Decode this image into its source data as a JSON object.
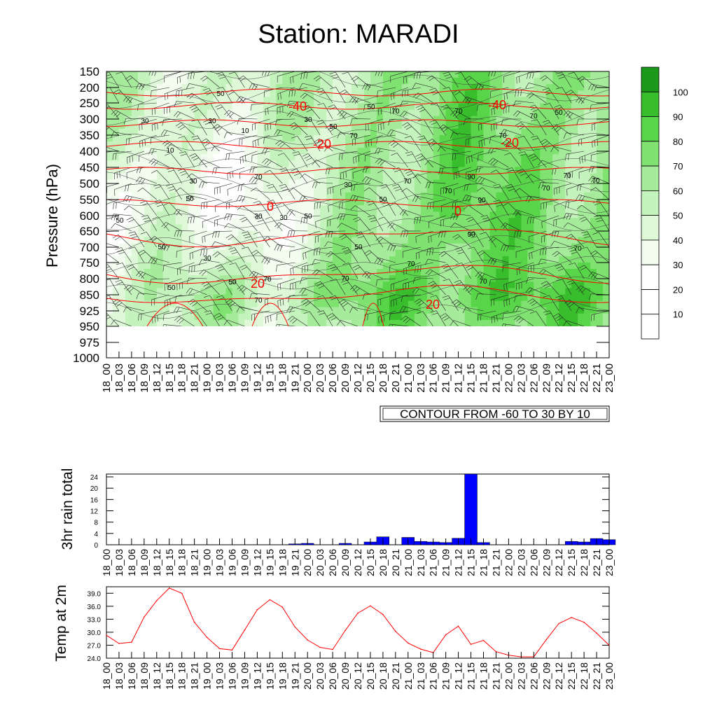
{
  "title": "Station: MARADI",
  "time_labels": [
    "18_00",
    "18_03",
    "18_06",
    "18_09",
    "18_12",
    "18_15",
    "18_18",
    "18_21",
    "19_00",
    "19_03",
    "19_06",
    "19_09",
    "19_12",
    "19_15",
    "19_18",
    "19_21",
    "20_00",
    "20_03",
    "20_06",
    "20_09",
    "20_12",
    "20_15",
    "20_18",
    "20_21",
    "21_00",
    "21_03",
    "21_06",
    "21_09",
    "21_12",
    "21_15",
    "21_18",
    "21_21",
    "22_00",
    "22_03",
    "22_06",
    "22_09",
    "22_12",
    "22_15",
    "22_18",
    "22_21",
    "23_00"
  ],
  "colors": {
    "rh_fill": [
      "#ffffff",
      "#ffffff",
      "#f2fdf0",
      "#def8d8",
      "#c5f3bd",
      "#a6eb9b",
      "#7fe271",
      "#58d548",
      "#38bd2c",
      "#1a991a"
    ],
    "temp_contour": "#ff0000",
    "rain_bar": "#0000ff",
    "temp_line": "#ff0000"
  },
  "chart_data": [
    {
      "type": "heatmap",
      "ylabel": "Pressure (hPa)",
      "y_ticks": [
        150,
        200,
        250,
        300,
        350,
        400,
        450,
        500,
        550,
        600,
        650,
        700,
        750,
        800,
        850,
        925,
        950,
        975,
        1000
      ],
      "x_categories_ref": "time_labels",
      "colorbar_levels": [
        10,
        20,
        30,
        40,
        50,
        60,
        70,
        80,
        90,
        100
      ],
      "temperature_contours": [
        -40,
        -20,
        0,
        20
      ],
      "info_label": "CONTOUR FROM -60 TO 30 BY 10",
      "rh_contour_labels": [
        10,
        30,
        50,
        70,
        90
      ],
      "grid": false
    },
    {
      "type": "bar",
      "ylabel": "3hr rain total",
      "ylim": [
        0,
        25
      ],
      "y_ticks": [
        0,
        4,
        8,
        12,
        16,
        20,
        24
      ],
      "values": [
        0,
        0,
        0,
        0,
        0,
        0,
        0,
        0,
        0,
        0,
        0,
        0,
        0,
        0,
        0,
        0.3,
        0.5,
        0,
        0,
        0.5,
        0,
        1.0,
        2.8,
        0,
        2.6,
        1.2,
        1.0,
        0.8,
        2.3,
        25,
        0.8,
        0,
        0,
        0,
        0,
        0,
        0,
        1.2,
        1.0,
        2.2,
        1.8
      ]
    },
    {
      "type": "line",
      "ylabel": "Temp at 2m",
      "ylim": [
        24,
        40.5
      ],
      "y_ticks": [
        "24.0",
        "27.0",
        "30.0",
        "33.0",
        "36.0",
        "39.0"
      ],
      "values": [
        29.3,
        27.4,
        27.7,
        33.5,
        37.3,
        40.2,
        39.0,
        32.3,
        28.8,
        26.2,
        25.9,
        30.5,
        35.2,
        37.5,
        35.8,
        31.2,
        28.2,
        26.5,
        26.0,
        30.4,
        34.4,
        36.1,
        34.1,
        30.2,
        27.5,
        26.1,
        25.3,
        29.4,
        31.4,
        27.2,
        28.1,
        25.5,
        24.7,
        24.3,
        24.3,
        28.3,
        32.0,
        33.4,
        32.3,
        29.8,
        27.0
      ]
    }
  ]
}
